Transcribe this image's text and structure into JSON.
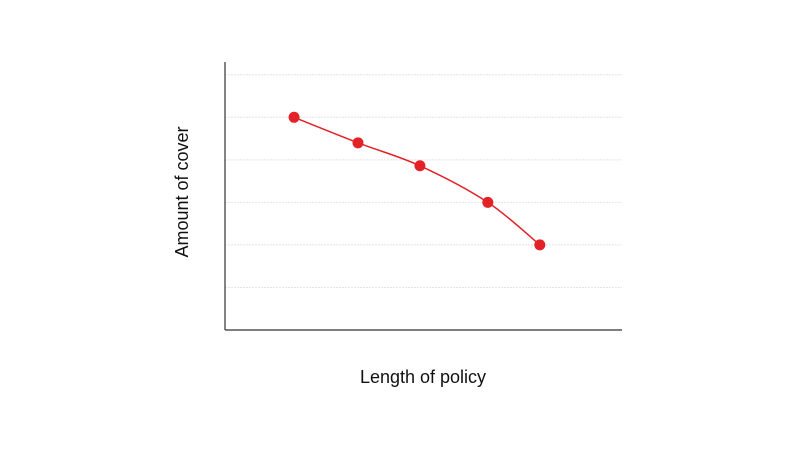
{
  "chart_data": {
    "type": "line",
    "x_label": "Length of policy",
    "y_label": "Amount of cover",
    "x": [
      1.74,
      3.35,
      4.91,
      6.62,
      7.93
    ],
    "values": [
      5.0,
      4.4,
      3.86,
      3.0,
      2.0
    ],
    "color": "#e32228",
    "xlim": [
      0,
      10
    ],
    "ylim": [
      0,
      6.3
    ],
    "yticks": [
      1,
      2,
      3,
      4,
      5,
      6
    ],
    "grid": true
  }
}
